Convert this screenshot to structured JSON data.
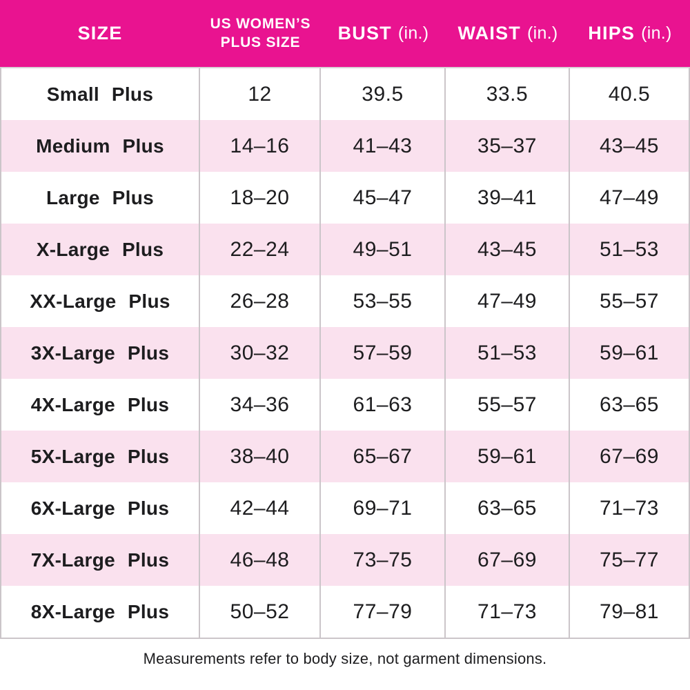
{
  "table": {
    "columns": [
      {
        "label": "SIZE",
        "unit": ""
      },
      {
        "label": "US WOMEN’S PLUS SIZE",
        "unit": ""
      },
      {
        "label": "BUST",
        "unit": "(in.)"
      },
      {
        "label": "WAIST",
        "unit": "(in.)"
      },
      {
        "label": "HIPS",
        "unit": "(in.)"
      }
    ],
    "rows": [
      {
        "size": "Small Plus",
        "us_plus_size": "12",
        "bust": "39.5",
        "waist": "33.5",
        "hips": "40.5"
      },
      {
        "size": "Medium Plus",
        "us_plus_size": "14–16",
        "bust": "41–43",
        "waist": "35–37",
        "hips": "43–45"
      },
      {
        "size": "Large Plus",
        "us_plus_size": "18–20",
        "bust": "45–47",
        "waist": "39–41",
        "hips": "47–49"
      },
      {
        "size": "X-Large Plus",
        "us_plus_size": "22–24",
        "bust": "49–51",
        "waist": "43–45",
        "hips": "51–53"
      },
      {
        "size": "XX-Large Plus",
        "us_plus_size": "26–28",
        "bust": "53–55",
        "waist": "47–49",
        "hips": "55–57"
      },
      {
        "size": "3X-Large Plus",
        "us_plus_size": "30–32",
        "bust": "57–59",
        "waist": "51–53",
        "hips": "59–61"
      },
      {
        "size": "4X-Large Plus",
        "us_plus_size": "34–36",
        "bust": "61–63",
        "waist": "55–57",
        "hips": "63–65"
      },
      {
        "size": "5X-Large Plus",
        "us_plus_size": "38–40",
        "bust": "65–67",
        "waist": "59–61",
        "hips": "67–69"
      },
      {
        "size": "6X-Large Plus",
        "us_plus_size": "42–44",
        "bust": "69–71",
        "waist": "63–65",
        "hips": "71–73"
      },
      {
        "size": "7X-Large Plus",
        "us_plus_size": "46–48",
        "bust": "73–75",
        "waist": "67–69",
        "hips": "75–77"
      },
      {
        "size": "8X-Large Plus",
        "us_plus_size": "50–52",
        "bust": "77–79",
        "waist": "71–73",
        "hips": "79–81"
      }
    ]
  },
  "footer": {
    "note": "Measurements refer to body size, not garment dimensions."
  },
  "colors": {
    "header_bg": "#E91390",
    "row_alt_bg": "#FAE1EE",
    "header_text": "#FFFFFF",
    "body_text": "#1D1D1F",
    "grid_line": "#CBC5C9"
  }
}
